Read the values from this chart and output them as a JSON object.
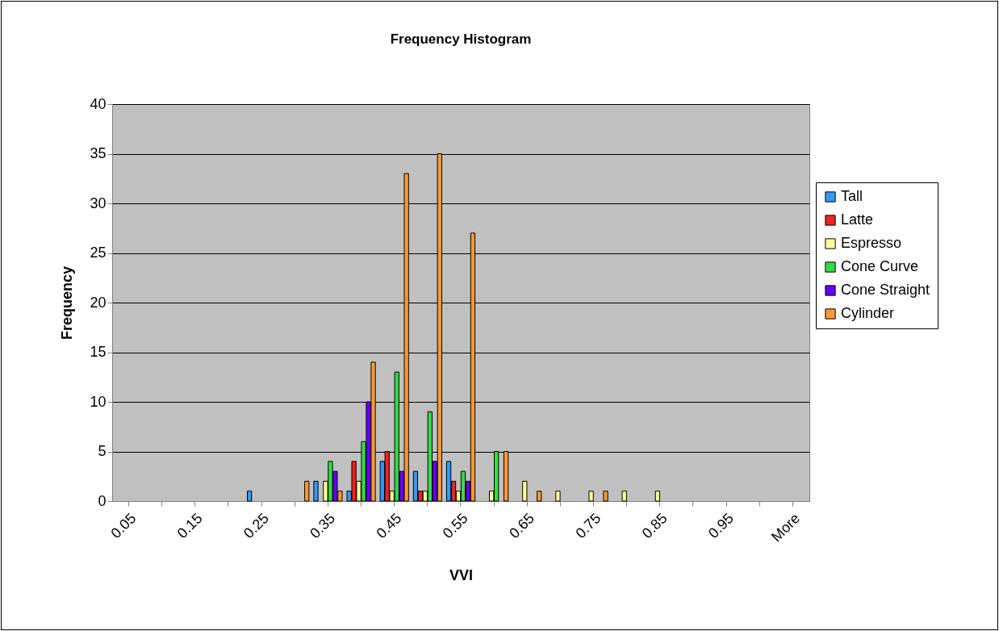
{
  "chart_data": {
    "type": "bar",
    "title": "Frequency Histogram",
    "xlabel": "VVI",
    "ylabel": "Frequency",
    "categories": [
      "0.05",
      null,
      "0.15",
      null,
      "0.25",
      null,
      "0.35",
      null,
      "0.45",
      null,
      "0.55",
      null,
      "0.65",
      null,
      "0.75",
      null,
      "0.85",
      null,
      "0.95",
      null,
      "More"
    ],
    "series": [
      {
        "name": "Tall",
        "color": "#3399ff",
        "values": [
          0,
          0,
          0,
          0,
          1,
          0,
          2,
          1,
          4,
          3,
          4,
          0,
          0,
          0,
          0,
          0,
          0,
          0,
          0,
          0,
          0
        ]
      },
      {
        "name": "Latte",
        "color": "#ee2222",
        "values": [
          0,
          0,
          0,
          0,
          0,
          0,
          0,
          4,
          5,
          1,
          2,
          0,
          0,
          0,
          0,
          0,
          0,
          0,
          0,
          0,
          0
        ]
      },
      {
        "name": "Espresso",
        "color": "#ffff99",
        "values": [
          0,
          0,
          0,
          0,
          0,
          0,
          2,
          2,
          1,
          1,
          1,
          1,
          2,
          1,
          1,
          1,
          1,
          0,
          0,
          0,
          0
        ]
      },
      {
        "name": "Cone Curve",
        "color": "#33dd44",
        "values": [
          0,
          0,
          0,
          0,
          0,
          0,
          4,
          6,
          13,
          9,
          3,
          5,
          0,
          0,
          0,
          0,
          0,
          0,
          0,
          0,
          0
        ]
      },
      {
        "name": "Cone Straight",
        "color": "#6600ff",
        "values": [
          0,
          0,
          0,
          0,
          0,
          0,
          3,
          10,
          3,
          4,
          2,
          0,
          0,
          0,
          0,
          0,
          0,
          0,
          0,
          0,
          0
        ]
      },
      {
        "name": "Cylinder",
        "color": "#ff9933",
        "values": [
          0,
          0,
          0,
          0,
          0,
          2,
          1,
          14,
          33,
          35,
          27,
          5,
          1,
          0,
          1,
          0,
          0,
          0,
          0,
          0,
          0
        ]
      }
    ],
    "ylim": [
      0,
      40
    ],
    "yticks": [
      0,
      5,
      10,
      15,
      20,
      25,
      30,
      35,
      40
    ],
    "grid": "y",
    "legend": "right"
  }
}
